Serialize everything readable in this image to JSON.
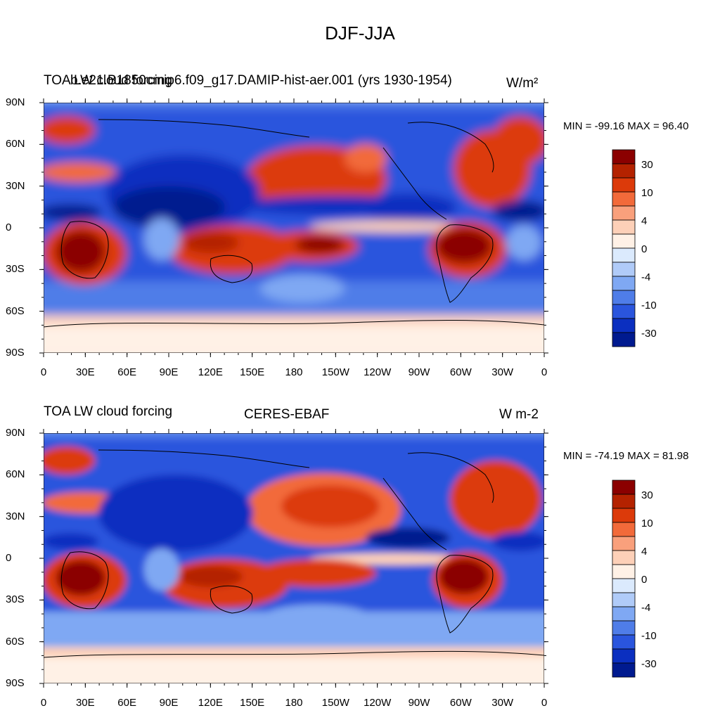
{
  "page_title": "DJF-JJA",
  "panels": [
    {
      "left_title": "TOA LW cloud forcing",
      "center_title": "b.e21.B1850cmip6.f09_g17.DAMIP-hist-aer.001 (yrs 1930-1954)",
      "units": "W/m²",
      "min_max": "MIN = -99.16 MAX =  96.40"
    },
    {
      "left_title": "TOA LW cloud forcing",
      "center_title": "CERES-EBAF",
      "units": "W m-2",
      "min_max": "MIN = -74.19 MAX =  81.98"
    }
  ],
  "lat_ticks": [
    "90N",
    "60N",
    "30N",
    "0",
    "30S",
    "60S",
    "90S"
  ],
  "lon_ticks": [
    "0",
    "30E",
    "60E",
    "90E",
    "120E",
    "150E",
    "180",
    "150W",
    "120W",
    "90W",
    "60W",
    "30W",
    "0"
  ],
  "colorbar": {
    "labels": [
      "30",
      "10",
      "4",
      "0",
      "-4",
      "-10",
      "-30"
    ],
    "colors_top_to_bottom": [
      "#8b0000",
      "#b42200",
      "#dc3a0a",
      "#f26a3a",
      "#f9a07c",
      "#fdd0b8",
      "#fff1e6",
      "#dbeafd",
      "#b0cbf8",
      "#7fa8f3",
      "#4f7de8",
      "#2a55dd",
      "#0b2fc0",
      "#001a8f"
    ]
  }
}
